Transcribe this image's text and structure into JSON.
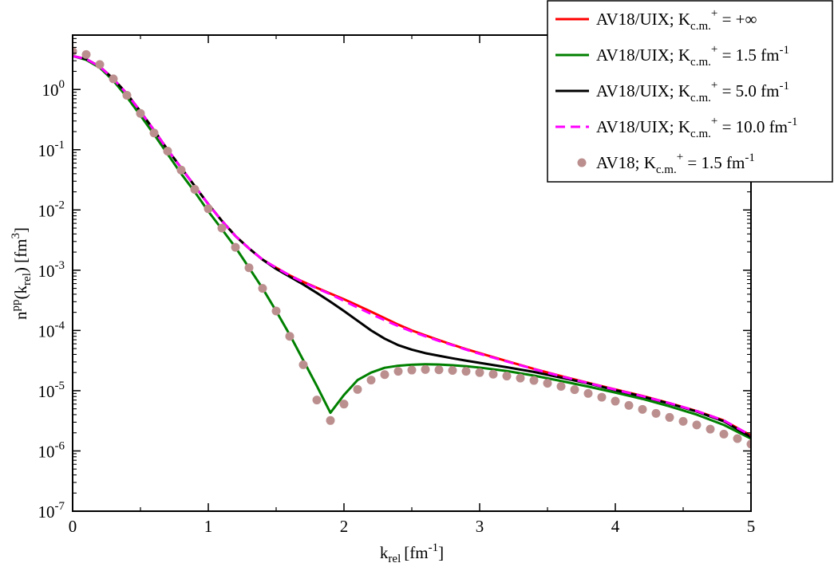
{
  "chart_data": {
    "type": "line",
    "title": "",
    "xlabel": {
      "base": "k",
      "sub": "rel",
      "unit": "[fm",
      "unit_sup": "-1",
      "unit_close": "]"
    },
    "ylabel": {
      "base": "n",
      "sup": "pp",
      "open": "(k",
      "sub": "rel",
      "close": ") [fm",
      "unit_sup": "3",
      "unit_close": "]"
    },
    "xlim": [
      0,
      5
    ],
    "ylim": [
      1e-07,
      8
    ],
    "yscale": "log",
    "grid": false,
    "legend_position": "top-right",
    "xticks": [
      {
        "value": 0,
        "label": "0"
      },
      {
        "value": 1,
        "label": "1"
      },
      {
        "value": 2,
        "label": "2"
      },
      {
        "value": 3,
        "label": "3"
      },
      {
        "value": 4,
        "label": "4"
      },
      {
        "value": 5,
        "label": "5"
      }
    ],
    "yticks": [
      {
        "value": 1.0,
        "label": "10",
        "exp": "0"
      },
      {
        "value": 0.1,
        "label": "10",
        "exp": "-1"
      },
      {
        "value": 0.01,
        "label": "10",
        "exp": "-2"
      },
      {
        "value": 0.001,
        "label": "10",
        "exp": "-3"
      },
      {
        "value": 0.0001,
        "label": "10",
        "exp": "-4"
      },
      {
        "value": 1e-05,
        "label": "10",
        "exp": "-5"
      },
      {
        "value": 1e-06,
        "label": "10",
        "exp": "-6"
      },
      {
        "value": 1e-07,
        "label": "10",
        "exp": "-7"
      }
    ],
    "series": [
      {
        "legend": {
          "prefix": "AV18/UIX; K",
          "sub": "c.m.",
          "sup": "+",
          "value": " = +∞",
          "value_sup": ""
        },
        "color": "#ff0000",
        "style": "line",
        "x": [
          0,
          0.1,
          0.2,
          0.3,
          0.4,
          0.5,
          0.6,
          0.7,
          0.8,
          0.9,
          1.0,
          1.1,
          1.2,
          1.3,
          1.4,
          1.5,
          1.6,
          1.7,
          1.8,
          1.9,
          2.0,
          2.1,
          2.2,
          2.3,
          2.4,
          2.5,
          2.6,
          2.7,
          2.8,
          2.9,
          3.0,
          3.2,
          3.4,
          3.6,
          3.8,
          4.0,
          4.2,
          4.4,
          4.6,
          4.8,
          5.0
        ],
        "y": [
          3.6,
          3.2,
          2.4,
          1.5,
          0.85,
          0.43,
          0.21,
          0.1,
          0.05,
          0.025,
          0.0125,
          0.0066,
          0.0037,
          0.0023,
          0.0015,
          0.0011,
          0.00082,
          0.00064,
          0.00051,
          0.00041,
          0.00033,
          0.00026,
          0.000205,
          0.00016,
          0.000125,
          0.0001,
          8.3e-05,
          6.9e-05,
          5.8e-05,
          4.9e-05,
          4.2e-05,
          3.1e-05,
          2.3e-05,
          1.75e-05,
          1.35e-05,
          1.05e-05,
          8.2e-06,
          6.2e-06,
          4.6e-06,
          3.2e-06,
          1.8e-06
        ]
      },
      {
        "legend": {
          "prefix": "AV18/UIX; K",
          "sub": "c.m.",
          "sup": "+",
          "value": " = 1.5 fm",
          "value_sup": "-1"
        },
        "color": "#008000",
        "style": "line",
        "x": [
          0,
          0.1,
          0.2,
          0.3,
          0.4,
          0.5,
          0.6,
          0.7,
          0.8,
          0.9,
          1.0,
          1.1,
          1.2,
          1.3,
          1.4,
          1.5,
          1.6,
          1.7,
          1.8,
          1.9,
          2.0,
          2.1,
          2.2,
          2.3,
          2.4,
          2.5,
          2.6,
          2.7,
          2.8,
          2.9,
          3.0,
          3.2,
          3.4,
          3.6,
          3.8,
          4.0,
          4.2,
          4.4,
          4.6,
          4.8,
          5.0
        ],
        "y": [
          3.6,
          3.1,
          2.3,
          1.4,
          0.75,
          0.37,
          0.18,
          0.085,
          0.04,
          0.02,
          0.0095,
          0.0048,
          0.0024,
          0.0011,
          0.0005,
          0.00021,
          8.5e-05,
          3.2e-05,
          1.2e-05,
          4.3e-06,
          8.5e-06,
          1.5e-05,
          2e-05,
          2.4e-05,
          2.6e-05,
          2.7e-05,
          2.75e-05,
          2.72e-05,
          2.65e-05,
          2.55e-05,
          2.42e-05,
          2.12e-05,
          1.78e-05,
          1.45e-05,
          1.17e-05,
          9.3e-06,
          7.3e-06,
          5.5e-06,
          4e-06,
          2.7e-06,
          1.6e-06
        ]
      },
      {
        "legend": {
          "prefix": "AV18/UIX; K",
          "sub": "c.m.",
          "sup": "+",
          "value": " = 5.0 fm",
          "value_sup": "-1"
        },
        "color": "#000000",
        "style": "line",
        "x": [
          0,
          0.1,
          0.2,
          0.3,
          0.4,
          0.5,
          0.6,
          0.7,
          0.8,
          0.9,
          1.0,
          1.1,
          1.2,
          1.3,
          1.4,
          1.5,
          1.6,
          1.7,
          1.8,
          1.9,
          2.0,
          2.1,
          2.2,
          2.3,
          2.4,
          2.5,
          2.6,
          2.7,
          2.8,
          2.9,
          3.0,
          3.2,
          3.4,
          3.6,
          3.8,
          4.0,
          4.2,
          4.4,
          4.6,
          4.8,
          5.0
        ],
        "y": [
          3.6,
          3.2,
          2.4,
          1.5,
          0.85,
          0.43,
          0.21,
          0.1,
          0.05,
          0.025,
          0.0125,
          0.0066,
          0.0037,
          0.0023,
          0.0015,
          0.00105,
          0.00078,
          0.00058,
          0.00042,
          0.0003,
          0.00021,
          0.000145,
          0.0001,
          7.3e-05,
          5.7e-05,
          4.8e-05,
          4.2e-05,
          3.8e-05,
          3.45e-05,
          3.15e-05,
          2.9e-05,
          2.45e-05,
          2.05e-05,
          1.65e-05,
          1.32e-05,
          1.02e-05,
          8e-06,
          6.1e-06,
          4.5e-06,
          3.1e-06,
          1.7e-06
        ]
      },
      {
        "legend": {
          "prefix": "AV18/UIX; K",
          "sub": "c.m.",
          "sup": "+",
          "value": " = 10.0 fm",
          "value_sup": "-1"
        },
        "color": "#ff00ff",
        "style": "dashed",
        "x": [
          0,
          0.1,
          0.2,
          0.3,
          0.4,
          0.5,
          0.6,
          0.7,
          0.8,
          0.9,
          1.0,
          1.1,
          1.2,
          1.3,
          1.4,
          1.5,
          1.6,
          1.7,
          1.8,
          1.9,
          2.0,
          2.1,
          2.2,
          2.3,
          2.4,
          2.5,
          2.6,
          2.7,
          2.8,
          2.9,
          3.0,
          3.2,
          3.4,
          3.6,
          3.8,
          4.0,
          4.2,
          4.4,
          4.6,
          4.8,
          5.0
        ],
        "y": [
          3.6,
          3.2,
          2.4,
          1.5,
          0.85,
          0.43,
          0.21,
          0.1,
          0.05,
          0.025,
          0.0125,
          0.0066,
          0.0037,
          0.0023,
          0.0015,
          0.0011,
          0.00082,
          0.00063,
          0.0005,
          0.0004,
          0.00031,
          0.00024,
          0.000188,
          0.000148,
          0.000118,
          9.6e-05,
          8e-05,
          6.7e-05,
          5.7e-05,
          4.8e-05,
          4.1e-05,
          3.05e-05,
          2.28e-05,
          1.73e-05,
          1.34e-05,
          1.04e-05,
          8.1e-06,
          6.2e-06,
          4.6e-06,
          3.2e-06,
          1.8e-06
        ]
      },
      {
        "legend": {
          "prefix": "AV18; K",
          "sub": "c.m.",
          "sup": "+",
          "value": " = 1.5 fm",
          "value_sup": "-1"
        },
        "color": "#bc8f8f",
        "style": "points",
        "x": [
          0,
          0.1,
          0.2,
          0.3,
          0.4,
          0.5,
          0.6,
          0.7,
          0.8,
          0.9,
          1.0,
          1.1,
          1.2,
          1.3,
          1.4,
          1.5,
          1.6,
          1.7,
          1.8,
          1.9,
          2.0,
          2.1,
          2.2,
          2.3,
          2.4,
          2.5,
          2.6,
          2.7,
          2.8,
          2.9,
          3.0,
          3.1,
          3.2,
          3.3,
          3.4,
          3.5,
          3.6,
          3.7,
          3.8,
          3.9,
          4.0,
          4.1,
          4.2,
          4.3,
          4.4,
          4.5,
          4.6,
          4.7,
          4.8,
          4.9,
          5.0
        ],
        "y": [
          4.3,
          3.8,
          2.6,
          1.5,
          0.8,
          0.4,
          0.19,
          0.095,
          0.046,
          0.022,
          0.0105,
          0.005,
          0.0024,
          0.0011,
          0.0005,
          0.00021,
          8e-05,
          2.7e-05,
          7e-06,
          3.2e-06,
          6e-06,
          1.05e-05,
          1.5e-05,
          1.85e-05,
          2.1e-05,
          2.2e-05,
          2.25e-05,
          2.22e-05,
          2.17e-05,
          2.1e-05,
          2e-05,
          1.88e-05,
          1.75e-05,
          1.62e-05,
          1.48e-05,
          1.33e-05,
          1.18e-05,
          1.04e-05,
          9e-06,
          7.8e-06,
          6.7e-06,
          5.7e-06,
          4.9e-06,
          4.2e-06,
          3.6e-06,
          3.1e-06,
          2.7e-06,
          2.3e-06,
          1.9e-06,
          1.6e-06,
          1.3e-06
        ]
      }
    ]
  }
}
